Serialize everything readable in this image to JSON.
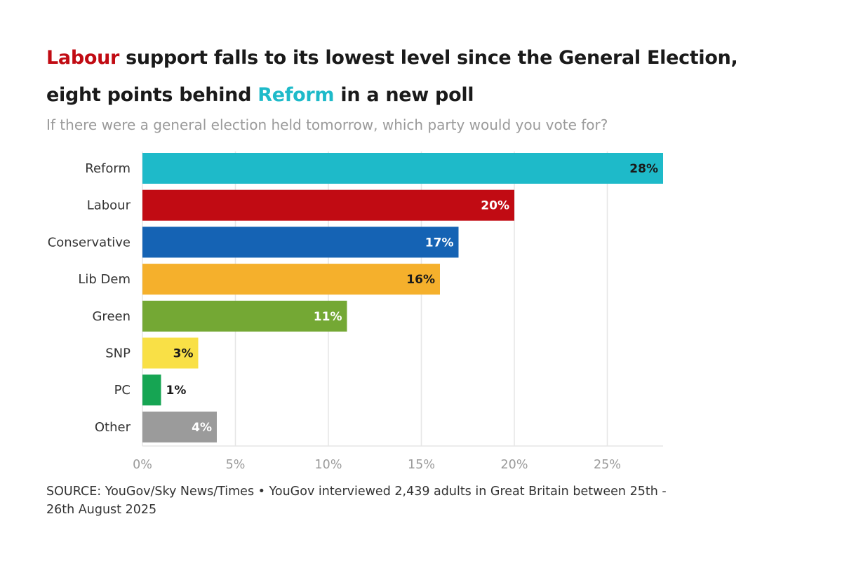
{
  "header": {
    "title_part1": "Labour",
    "title_part2": " support falls to its lowest level since the General Election, eight points behind ",
    "title_part3": "Reform",
    "title_part4": " in a new poll",
    "subtitle": "If there were a general election held tomorrow, which party would you vote for?"
  },
  "colors": {
    "labour": "#c10b13",
    "reform": "#1ebac9"
  },
  "footer": {
    "source": "SOURCE: YouGov/Sky News/Times • YouGov interviewed 2,439 adults in Great Britain between 25th - 26th August 2025"
  },
  "chart_data": {
    "type": "bar",
    "orientation": "horizontal",
    "title": "Labour support falls to its lowest level since the General Election, eight points behind Reform in a new poll",
    "subtitle": "If there were a general election held tomorrow, which party would you vote for?",
    "categories": [
      "Reform",
      "Labour",
      "Conservative",
      "Lib Dem",
      "Green",
      "SNP",
      "PC",
      "Other"
    ],
    "values": [
      28,
      20,
      17,
      16,
      11,
      3,
      1,
      4
    ],
    "data_labels": [
      "28%",
      "20%",
      "17%",
      "16%",
      "11%",
      "3%",
      "1%",
      "4%"
    ],
    "bar_colors": [
      "#1ebac9",
      "#c10b13",
      "#1563b4",
      "#f5b02c",
      "#74a834",
      "#f9e046",
      "#16a553",
      "#9b9b9b"
    ],
    "label_colors": [
      "#1a1a1a",
      "#ffffff",
      "#ffffff",
      "#1a1a1a",
      "#ffffff",
      "#1a1a1a",
      "#1a1a1a",
      "#ffffff"
    ],
    "xlim": [
      0,
      28
    ],
    "xticks": [
      0,
      5,
      10,
      15,
      20,
      25
    ],
    "xtick_labels": [
      "0%",
      "5%",
      "10%",
      "15%",
      "20%",
      "25%"
    ],
    "xlabel": "",
    "ylabel": "",
    "grid": true
  }
}
